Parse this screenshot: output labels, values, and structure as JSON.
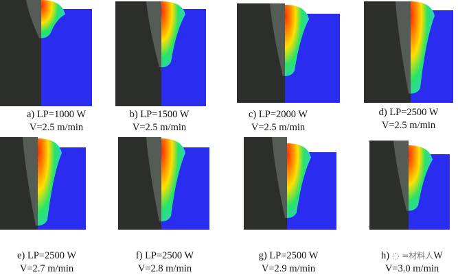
{
  "colors": {
    "substrate": "#2a2cf0",
    "hot": "#ff2a00",
    "mid": "#ffe000",
    "warm": "#27e36a",
    "photo": "#2b2e2a"
  },
  "panels": [
    {
      "id": "a",
      "line1": "a) LP=1000 W",
      "line2": "V=2.5 m/min",
      "relative_depth": 0.3
    },
    {
      "id": "b",
      "line1": "b) LP=1500 W",
      "line2": "V=2.5 m/min",
      "relative_depth": 0.6
    },
    {
      "id": "c",
      "line1": "c) LP=2000 W",
      "line2": "V=2.5 m/min",
      "relative_depth": 0.7
    },
    {
      "id": "d",
      "line1": "d) LP=2500 W",
      "line2": "V=2.5 m/min",
      "relative_depth": 0.9
    },
    {
      "id": "e",
      "line1": "e) LP=2500 W",
      "line2": "V=2.7 m/min",
      "relative_depth": 0.95
    },
    {
      "id": "f",
      "line1": "f) LP=2500 W",
      "line2": "V=2.8 m/min",
      "relative_depth": 0.9
    },
    {
      "id": "g",
      "line1": "g) LP=2500 W",
      "line2": "V=2.9 m/min",
      "relative_depth": 0.85
    },
    {
      "id": "h",
      "line1": "h)",
      "line2": "V=3.0 m/min",
      "relative_depth": 0.75,
      "watermark": "材料人",
      "line1_suffix": "W"
    }
  ]
}
